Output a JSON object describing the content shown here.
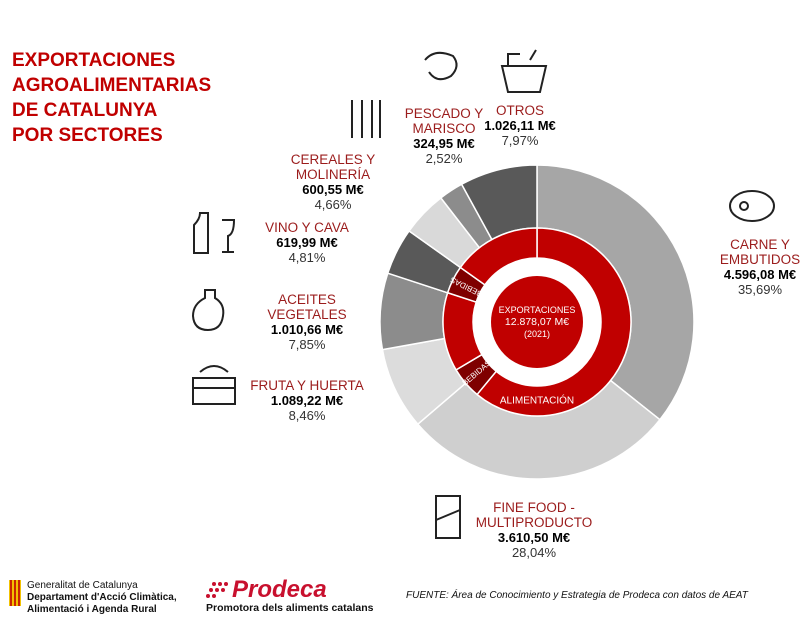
{
  "chart_data": {
    "type": "pie",
    "title_lines": [
      "EXPORTACIONES",
      "AGROALIMENTARIAS",
      "DE CATALUNYA",
      "POR SECTORES"
    ],
    "center_title": "EXPORTACIONES",
    "total_label": "12.878,07 M€",
    "year_label": "(2021)",
    "categories": [
      "CARNE Y EMBUTIDOS",
      "FINE FOOD - MULTIPRODUCTO",
      "FRUTA Y HUERTA",
      "ACEITES VEGETALES",
      "VINO Y CAVA",
      "CEREALES Y MOLINERÍA",
      "PESCADO Y MARISCO",
      "OTROS"
    ],
    "values": [
      4596.08,
      3610.5,
      1089.22,
      1010.66,
      619.99,
      600.55,
      324.95,
      1026.11
    ],
    "value_labels": [
      "4.596,08 M€",
      "3.610,50 M€",
      "1.089,22 M€",
      "1.010,66 M€",
      "619,99 M€",
      "600,55 M€",
      "324,95 M€",
      "1.026,11 M€"
    ],
    "percent_labels": [
      "35,69%",
      "28,04%",
      "8,46%",
      "7,85%",
      "4,81%",
      "4,66%",
      "2,52%",
      "7,97%"
    ],
    "colors": [
      "#a6a6a6",
      "#cfcfcf",
      "#dcdcdc",
      "#8c8c8c",
      "#595959",
      "#d9d9d9",
      "#8c8c8c",
      "#595959"
    ],
    "inner_ring": {
      "categories": [
        "ALIMENTACIÓN",
        "BEBIDAS",
        null,
        "BEBIDAS",
        null
      ],
      "values": [
        61.0,
        5.5,
        13.54,
        4.81,
        15.15
      ],
      "colors": [
        "#c00000",
        "#7f0000",
        "#c00000",
        "#7f0000",
        "#c00000"
      ]
    }
  },
  "footer": {
    "org_lines": [
      "Generalitat de Catalunya",
      "Departament d'Acció Climàtica,",
      "Alimentació i Agenda Rural"
    ],
    "brand": "Prodeca",
    "tagline": "Promotora dels aliments catalans",
    "source": "FUENTE:  Área de Conocimiento y Estrategia de Prodeca con datos de AEAT"
  }
}
